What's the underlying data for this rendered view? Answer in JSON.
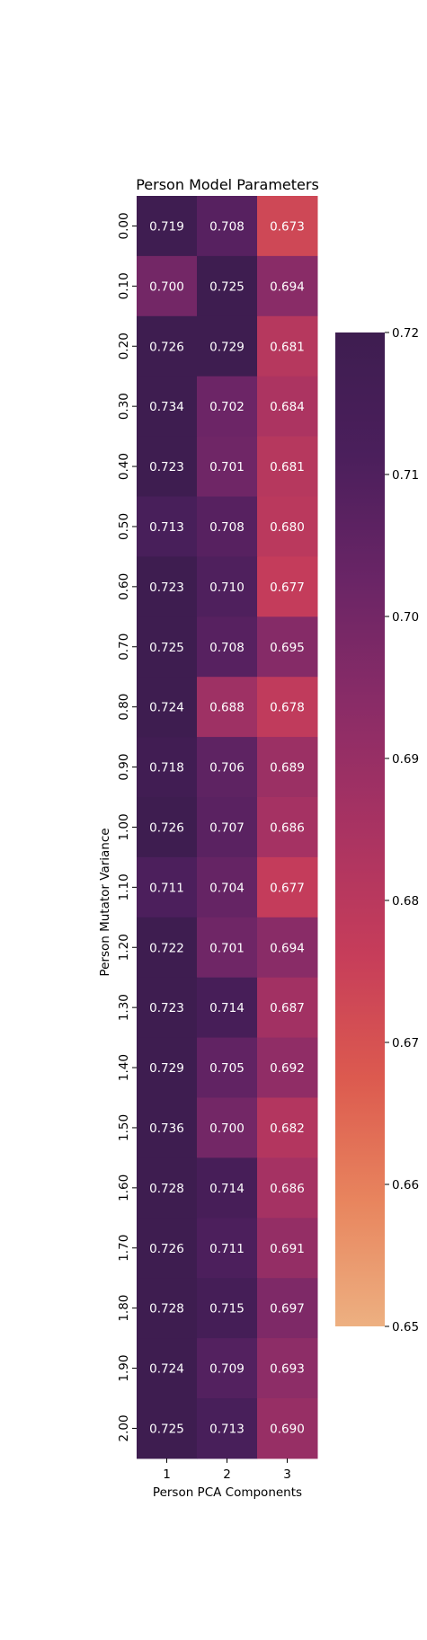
{
  "chart_data": {
    "type": "heatmap",
    "title": "Person Model Parameters",
    "xlabel": "Person PCA Components",
    "ylabel": "Person Mutator Variance",
    "x_categories": [
      "1",
      "2",
      "3"
    ],
    "y_categories": [
      "0.00",
      "0.10",
      "0.20",
      "0.30",
      "0.40",
      "0.50",
      "0.60",
      "0.70",
      "0.80",
      "0.90",
      "1.00",
      "1.10",
      "1.20",
      "1.30",
      "1.40",
      "1.50",
      "1.60",
      "1.70",
      "1.80",
      "1.90",
      "2.00"
    ],
    "values": [
      [
        0.719,
        0.708,
        0.673
      ],
      [
        0.7,
        0.725,
        0.694
      ],
      [
        0.726,
        0.729,
        0.681
      ],
      [
        0.734,
        0.702,
        0.684
      ],
      [
        0.723,
        0.701,
        0.681
      ],
      [
        0.713,
        0.708,
        0.68
      ],
      [
        0.723,
        0.71,
        0.677
      ],
      [
        0.725,
        0.708,
        0.695
      ],
      [
        0.724,
        0.688,
        0.678
      ],
      [
        0.718,
        0.706,
        0.689
      ],
      [
        0.726,
        0.707,
        0.686
      ],
      [
        0.711,
        0.704,
        0.677
      ],
      [
        0.722,
        0.701,
        0.694
      ],
      [
        0.723,
        0.714,
        0.687
      ],
      [
        0.729,
        0.705,
        0.692
      ],
      [
        0.736,
        0.7,
        0.682
      ],
      [
        0.728,
        0.714,
        0.686
      ],
      [
        0.726,
        0.711,
        0.691
      ],
      [
        0.728,
        0.715,
        0.697
      ],
      [
        0.724,
        0.709,
        0.693
      ],
      [
        0.725,
        0.713,
        0.69
      ]
    ],
    "cell_labels": [
      [
        "0.719",
        "0.708",
        "0.673"
      ],
      [
        "0.700",
        "0.725",
        "0.694"
      ],
      [
        "0.726",
        "0.729",
        "0.681"
      ],
      [
        "0.734",
        "0.702",
        "0.684"
      ],
      [
        "0.723",
        "0.701",
        "0.681"
      ],
      [
        "0.713",
        "0.708",
        "0.680"
      ],
      [
        "0.723",
        "0.710",
        "0.677"
      ],
      [
        "0.725",
        "0.708",
        "0.695"
      ],
      [
        "0.724",
        "0.688",
        "0.678"
      ],
      [
        "0.718",
        "0.706",
        "0.689"
      ],
      [
        "0.726",
        "0.707",
        "0.686"
      ],
      [
        "0.711",
        "0.704",
        "0.677"
      ],
      [
        "0.722",
        "0.701",
        "0.694"
      ],
      [
        "0.723",
        "0.714",
        "0.687"
      ],
      [
        "0.729",
        "0.705",
        "0.692"
      ],
      [
        "0.736",
        "0.700",
        "0.682"
      ],
      [
        "0.728",
        "0.714",
        "0.686"
      ],
      [
        "0.726",
        "0.711",
        "0.691"
      ],
      [
        "0.728",
        "0.715",
        "0.697"
      ],
      [
        "0.724",
        "0.709",
        "0.693"
      ],
      [
        "0.725",
        "0.713",
        "0.690"
      ]
    ],
    "colorscale": "flare",
    "color_range": [
      0.65,
      0.72
    ],
    "colorbar_ticks": [
      0.65,
      0.66,
      0.67,
      0.68,
      0.69,
      0.7,
      0.71,
      0.72
    ],
    "colorbar_tick_labels": [
      "0.65",
      "0.66",
      "0.67",
      "0.68",
      "0.69",
      "0.70",
      "0.71",
      "0.72"
    ],
    "colorscale_stops": [
      "#edb081",
      "#e8855e",
      "#dc5a4f",
      "#c63d5a",
      "#a93362",
      "#8a2c67",
      "#6a2566",
      "#4b1f5c",
      "#3e1d50"
    ]
  }
}
